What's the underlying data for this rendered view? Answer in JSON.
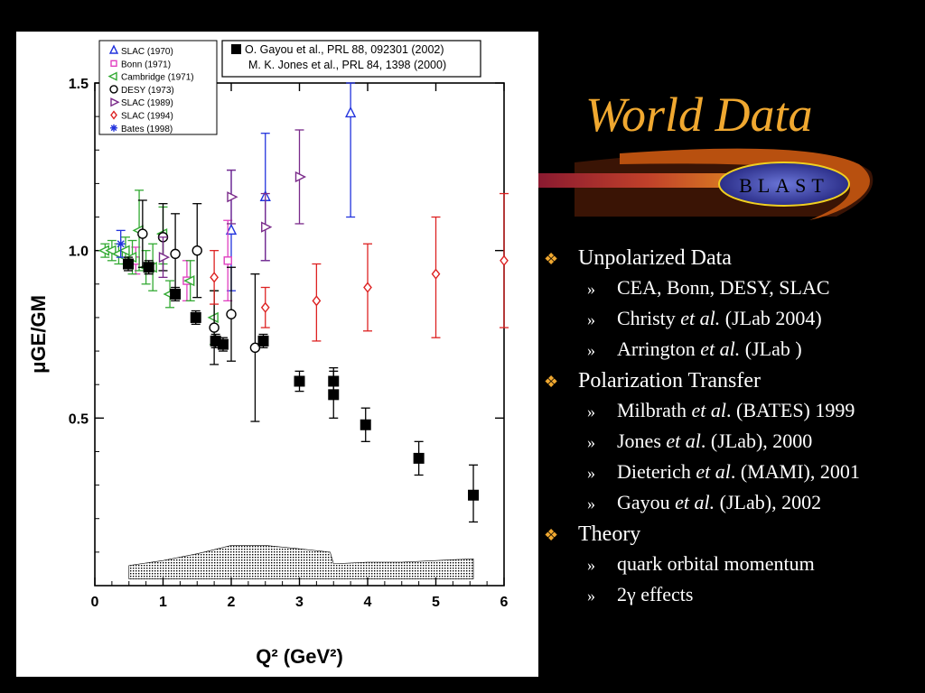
{
  "slide": {
    "title": "World Data",
    "logo_text": "BLAST",
    "bullets": [
      {
        "label": "Unpolarized Data",
        "subs": [
          {
            "pre": "CEA, Bonn, DESY, SLAC",
            "ital": "",
            "post": ""
          },
          {
            "pre": "Christy ",
            "ital": "et al.",
            "post": " (JLab 2004)"
          },
          {
            "pre": "Arrington ",
            "ital": "et al.",
            "post": " (JLab )"
          }
        ]
      },
      {
        "label": "Polarization Transfer",
        "subs": [
          {
            "pre": "Milbrath ",
            "ital": "et al",
            "post": ". (BATES) 1999"
          },
          {
            "pre": "Jones ",
            "ital": "et al",
            "post": ". (JLab), 2000"
          },
          {
            "pre": "Dieterich ",
            "ital": "et al",
            "post": ". (MAMI), 2001"
          },
          {
            "pre": "Gayou ",
            "ital": "et al.",
            "post": " (JLab), 2002"
          }
        ]
      },
      {
        "label": "Theory",
        "subs": [
          {
            "pre": "quark orbital momentum",
            "ital": "",
            "post": ""
          },
          {
            "pre": "2γ effects",
            "ital": "",
            "post": ""
          }
        ]
      }
    ],
    "bullet_marker": "❖",
    "sub_marker": "»"
  },
  "colors": {
    "accent": "#f0a830",
    "background": "#000000"
  },
  "chart_data": {
    "type": "scatter",
    "xlabel": "Q²  (GeV²)",
    "ylabel": "μGE/GM",
    "xlim": [
      0,
      6
    ],
    "ylim": [
      0,
      1.5
    ],
    "xticks": [
      "0",
      "1",
      "2",
      "3",
      "4",
      "5",
      "6"
    ],
    "yticks": [
      "0.5",
      "1.0",
      "1.5"
    ],
    "legend_left": [
      {
        "name": "SLAC (1970)",
        "color": "#2233dd",
        "marker": "triangle-up"
      },
      {
        "name": "Bonn (1971)",
        "color": "#e040c0",
        "marker": "square-open"
      },
      {
        "name": "Cambridge (1971)",
        "color": "#33aa33",
        "marker": "triangle-left"
      },
      {
        "name": "DESY (1973)",
        "color": "#000000",
        "marker": "circle-open"
      },
      {
        "name": "SLAC (1989)",
        "color": "#7a2a8a",
        "marker": "triangle-right"
      },
      {
        "name": "SLAC (1994)",
        "color": "#dd2222",
        "marker": "diamond-open"
      },
      {
        "name": "Bates (1998)",
        "color": "#2233dd",
        "marker": "star"
      }
    ],
    "legend_right": [
      "O. Gayou et al., PRL 88, 092301 (2002)",
      "M. K. Jones et al., PRL 84, 1398 (2000)"
    ],
    "series": [
      {
        "name": "SLAC (1970)",
        "color": "#2233dd",
        "marker": "triangle-up",
        "points": [
          {
            "x": 2.0,
            "y": 1.06,
            "lo": 0.88,
            "hi": 1.24
          },
          {
            "x": 2.5,
            "y": 1.16,
            "lo": 0.97,
            "hi": 1.35
          },
          {
            "x": 3.75,
            "y": 1.41,
            "lo": 1.1,
            "hi": 1.5
          }
        ]
      },
      {
        "name": "Bonn (1971)",
        "color": "#e040c0",
        "marker": "square-open",
        "points": [
          {
            "x": 0.6,
            "y": 0.97,
            "lo": 0.93,
            "hi": 1.01
          },
          {
            "x": 1.35,
            "y": 0.91,
            "lo": 0.85,
            "hi": 0.97
          },
          {
            "x": 1.95,
            "y": 0.97,
            "lo": 0.85,
            "hi": 1.09
          }
        ]
      },
      {
        "name": "Cambridge (1971)",
        "color": "#33aa33",
        "marker": "triangle-left",
        "points": [
          {
            "x": 0.15,
            "y": 1.0,
            "lo": 0.98,
            "hi": 1.02
          },
          {
            "x": 0.25,
            "y": 1.0,
            "lo": 0.97,
            "hi": 1.03
          },
          {
            "x": 0.35,
            "y": 0.99,
            "lo": 0.96,
            "hi": 1.02
          },
          {
            "x": 0.45,
            "y": 1.0,
            "lo": 0.96,
            "hi": 1.04
          },
          {
            "x": 0.55,
            "y": 0.98,
            "lo": 0.93,
            "hi": 1.03
          },
          {
            "x": 0.65,
            "y": 1.06,
            "lo": 0.94,
            "hi": 1.18
          },
          {
            "x": 0.75,
            "y": 0.95,
            "lo": 0.9,
            "hi": 1.0
          },
          {
            "x": 0.85,
            "y": 0.95,
            "lo": 0.88,
            "hi": 1.02
          },
          {
            "x": 1.0,
            "y": 1.05,
            "lo": 0.96,
            "hi": 1.13
          },
          {
            "x": 1.1,
            "y": 0.87,
            "lo": 0.83,
            "hi": 0.91
          },
          {
            "x": 1.4,
            "y": 0.91,
            "lo": 0.85,
            "hi": 0.97
          },
          {
            "x": 1.75,
            "y": 0.8,
            "lo": 0.72,
            "hi": 0.88
          }
        ]
      },
      {
        "name": "DESY (1973)",
        "color": "#000000",
        "marker": "circle-open",
        "points": [
          {
            "x": 0.7,
            "y": 1.05,
            "lo": 0.95,
            "hi": 1.15
          },
          {
            "x": 1.0,
            "y": 1.04,
            "lo": 0.94,
            "hi": 1.14
          },
          {
            "x": 1.18,
            "y": 0.99,
            "lo": 0.87,
            "hi": 1.11
          },
          {
            "x": 1.5,
            "y": 1.0,
            "lo": 0.86,
            "hi": 1.14
          },
          {
            "x": 1.75,
            "y": 0.77,
            "lo": 0.66,
            "hi": 0.88
          },
          {
            "x": 2.0,
            "y": 0.81,
            "lo": 0.67,
            "hi": 0.95
          },
          {
            "x": 2.35,
            "y": 0.71,
            "lo": 0.49,
            "hi": 0.93
          }
        ]
      },
      {
        "name": "SLAC (1989)",
        "color": "#7a2a8a",
        "marker": "triangle-right",
        "points": [
          {
            "x": 1.0,
            "y": 0.98,
            "lo": 0.92,
            "hi": 1.04
          },
          {
            "x": 2.0,
            "y": 1.16,
            "lo": 1.08,
            "hi": 1.24
          },
          {
            "x": 2.5,
            "y": 1.07,
            "lo": 0.97,
            "hi": 1.17
          },
          {
            "x": 3.0,
            "y": 1.22,
            "lo": 1.08,
            "hi": 1.36
          }
        ]
      },
      {
        "name": "SLAC (1994)",
        "color": "#dd2222",
        "marker": "diamond-open",
        "points": [
          {
            "x": 1.75,
            "y": 0.92,
            "lo": 0.84,
            "hi": 1.0
          },
          {
            "x": 2.5,
            "y": 0.83,
            "lo": 0.77,
            "hi": 0.89
          },
          {
            "x": 3.25,
            "y": 0.85,
            "lo": 0.73,
            "hi": 0.96
          },
          {
            "x": 4.0,
            "y": 0.89,
            "lo": 0.76,
            "hi": 1.02
          },
          {
            "x": 5.0,
            "y": 0.93,
            "lo": 0.74,
            "hi": 1.1
          },
          {
            "x": 6.0,
            "y": 0.97,
            "lo": 0.77,
            "hi": 1.17
          }
        ]
      },
      {
        "name": "Bates (1998)",
        "color": "#2233dd",
        "marker": "star",
        "points": [
          {
            "x": 0.38,
            "y": 1.02,
            "lo": 0.98,
            "hi": 1.06
          }
        ]
      },
      {
        "name": "O. Gayou et al., PRL 88, 092301 (2002) / M. K. Jones et al., PRL 84, 1398 (2000)",
        "color": "#000000",
        "marker": "square-filled",
        "points": [
          {
            "x": 0.49,
            "y": 0.96,
            "lo": 0.94,
            "hi": 0.98
          },
          {
            "x": 0.79,
            "y": 0.95,
            "lo": 0.93,
            "hi": 0.97
          },
          {
            "x": 1.18,
            "y": 0.87,
            "lo": 0.85,
            "hi": 0.89
          },
          {
            "x": 1.48,
            "y": 0.8,
            "lo": 0.78,
            "hi": 0.82
          },
          {
            "x": 1.77,
            "y": 0.73,
            "lo": 0.71,
            "hi": 0.75
          },
          {
            "x": 1.88,
            "y": 0.72,
            "lo": 0.7,
            "hi": 0.74
          },
          {
            "x": 2.47,
            "y": 0.73,
            "lo": 0.71,
            "hi": 0.75
          },
          {
            "x": 3.0,
            "y": 0.61,
            "lo": 0.58,
            "hi": 0.64
          },
          {
            "x": 3.5,
            "y": 0.61,
            "lo": 0.58,
            "hi": 0.64
          },
          {
            "x": 3.5,
            "y": 0.57,
            "lo": 0.5,
            "hi": 0.65
          },
          {
            "x": 3.97,
            "y": 0.48,
            "lo": 0.43,
            "hi": 0.53
          },
          {
            "x": 4.75,
            "y": 0.38,
            "lo": 0.33,
            "hi": 0.43
          },
          {
            "x": 5.55,
            "y": 0.27,
            "lo": 0.19,
            "hi": 0.36
          }
        ]
      }
    ],
    "systematic_band": {
      "x": [
        0.5,
        1.0,
        1.5,
        1.8,
        2.0,
        2.5,
        3.0,
        3.45,
        3.5,
        4.0,
        4.5,
        5.0,
        5.55
      ],
      "top": [
        0.04,
        0.055,
        0.075,
        0.09,
        0.1,
        0.1,
        0.09,
        0.08,
        0.045,
        0.05,
        0.05,
        0.055,
        0.06
      ]
    }
  }
}
